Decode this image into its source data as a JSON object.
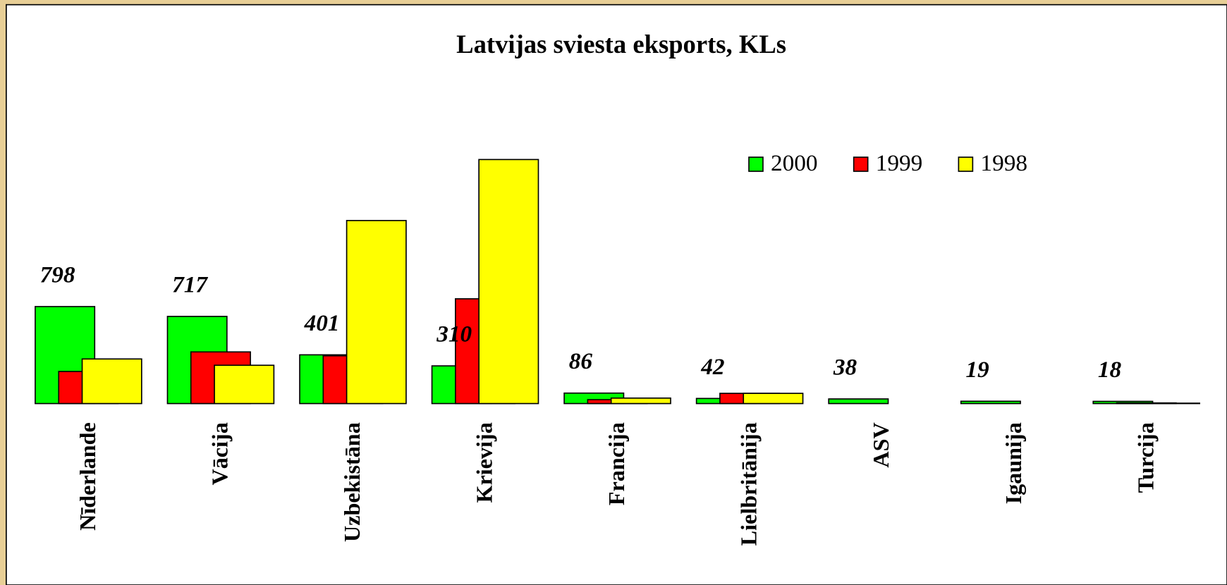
{
  "chart_data": {
    "type": "bar",
    "title": "Latvijas sviesta eksports, KLs",
    "categories": [
      "Nīderlande",
      "Vācija",
      "Uzbekistāna",
      "Krievija",
      "Francija",
      "Lielbritānija",
      "ASV",
      "Igaunija",
      "Turcija"
    ],
    "series": [
      {
        "name": "2000",
        "color": "#00ff00",
        "show_labels": true,
        "values": [
          798,
          717,
          401,
          310,
          86,
          42,
          38,
          19,
          18
        ]
      },
      {
        "name": "1999",
        "color": "#ff0000",
        "show_labels": false,
        "values": [
          264,
          425,
          393,
          862,
          32,
          84,
          0,
          0,
          5
        ]
      },
      {
        "name": "1998",
        "color": "#ffff00",
        "show_labels": false,
        "values": [
          367,
          315,
          1506,
          2008,
          45,
          84,
          0,
          0,
          3
        ]
      }
    ],
    "legend": "top-right",
    "grid": false
  }
}
